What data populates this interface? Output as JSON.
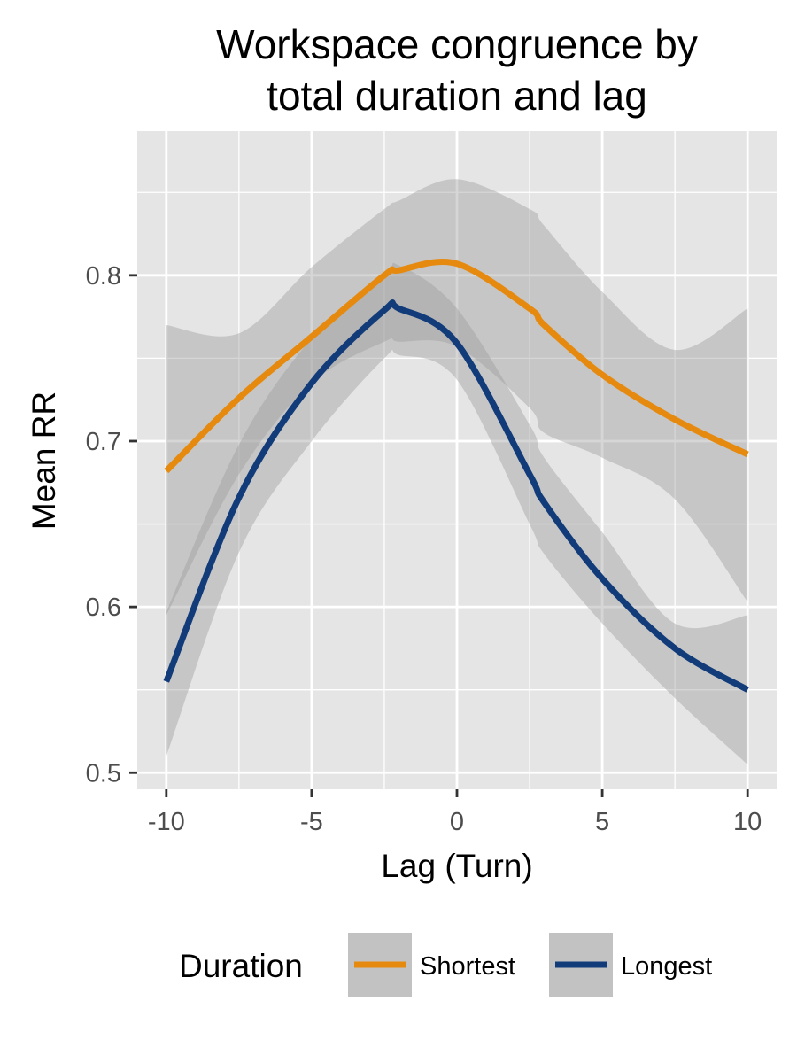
{
  "chart_data": {
    "type": "line",
    "title_lines": [
      "Workspace congruence by",
      "total duration and lag"
    ],
    "xlabel": "Lag (Turn)",
    "ylabel": "Mean RR",
    "xlim": [
      -11,
      11
    ],
    "ylim": [
      0.49,
      0.887
    ],
    "x_ticks": [
      -10,
      -5,
      0,
      5,
      10
    ],
    "x_tick_labels": [
      "-10",
      "-5",
      "0",
      "5",
      "10"
    ],
    "y_ticks": [
      0.5,
      0.6,
      0.7,
      0.8
    ],
    "y_tick_labels": [
      "0.5",
      "0.6",
      "0.7",
      "0.8"
    ],
    "grid": true,
    "legend": {
      "title": "Duration",
      "position": "bottom"
    },
    "colors": {
      "panel": "#e5e5e5",
      "grid": "#ffffff",
      "ribbon": "#999999",
      "tick": "#333333"
    },
    "x": [
      -10,
      -7.5,
      -5,
      -2.5,
      -2,
      0,
      2.5,
      3,
      5,
      7.5,
      10
    ],
    "series": [
      {
        "name": "Shortest",
        "color": "#e68a0f",
        "values": [
          0.682,
          0.726,
          0.763,
          0.8,
          0.803,
          0.807,
          0.78,
          0.77,
          0.74,
          0.713,
          0.692
        ],
        "lower": [
          0.595,
          0.68,
          0.735,
          0.76,
          0.76,
          0.757,
          0.72,
          0.705,
          0.69,
          0.665,
          0.603
        ],
        "upper": [
          0.77,
          0.765,
          0.805,
          0.84,
          0.845,
          0.858,
          0.84,
          0.83,
          0.79,
          0.755,
          0.78
        ]
      },
      {
        "name": "Longest",
        "color": "#123b7a",
        "values": [
          0.555,
          0.666,
          0.735,
          0.779,
          0.78,
          0.759,
          0.68,
          0.663,
          0.617,
          0.575,
          0.55
        ],
        "lower": [
          0.51,
          0.633,
          0.7,
          0.75,
          0.752,
          0.737,
          0.65,
          0.632,
          0.59,
          0.545,
          0.505
        ],
        "upper": [
          0.597,
          0.698,
          0.762,
          0.8,
          0.806,
          0.78,
          0.71,
          0.69,
          0.645,
          0.59,
          0.595
        ]
      }
    ]
  }
}
